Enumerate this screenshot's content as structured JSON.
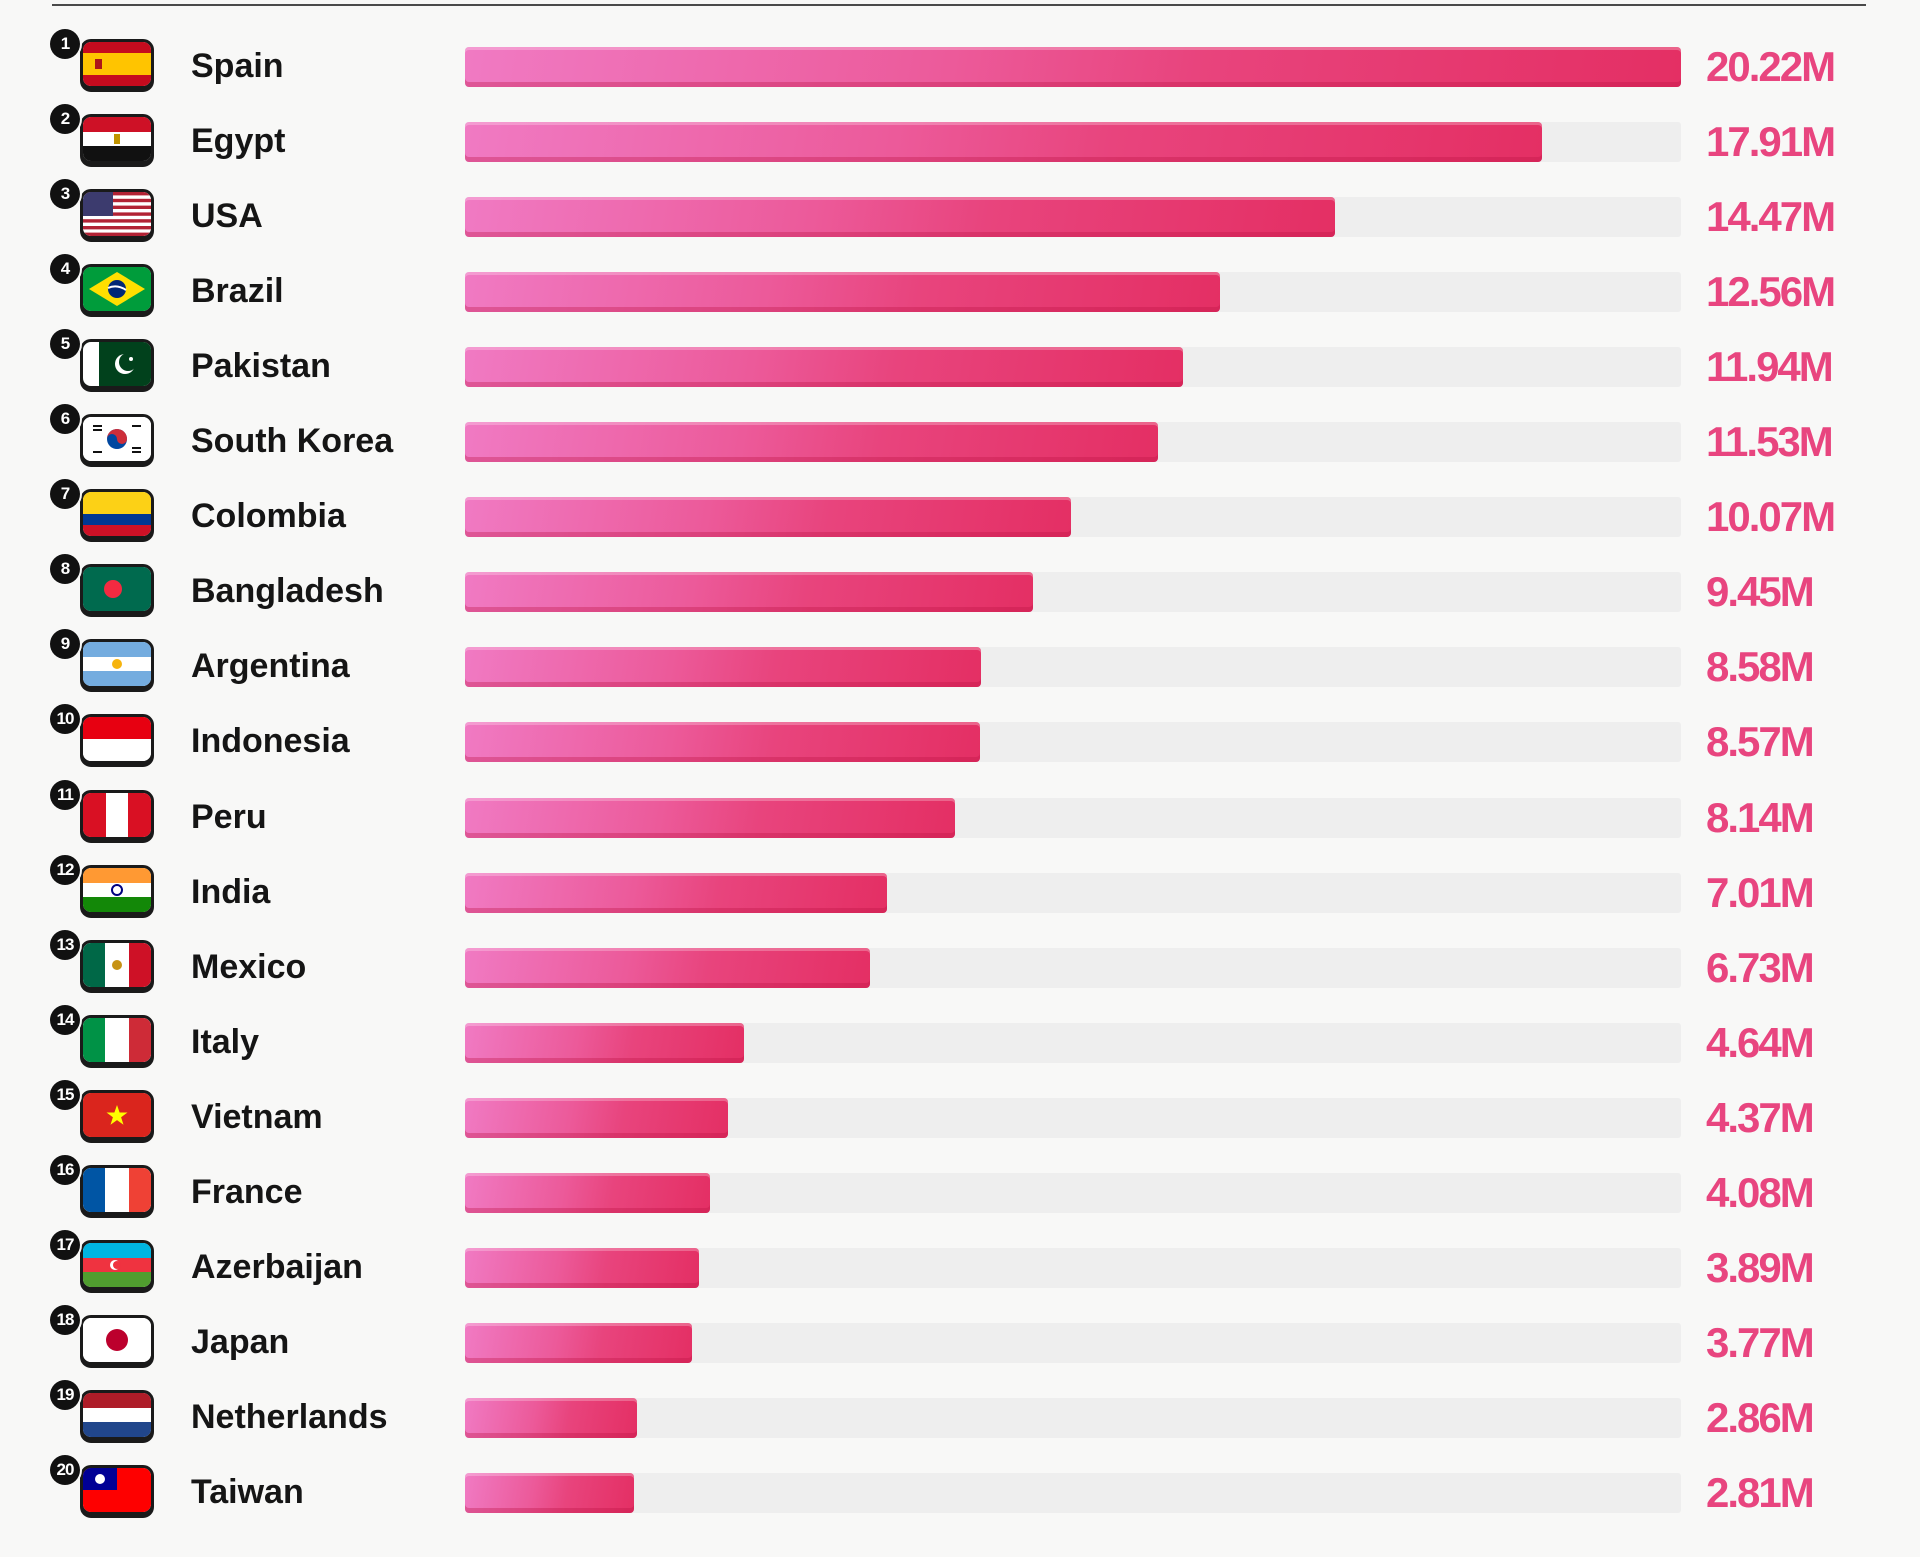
{
  "chart_data": {
    "type": "bar",
    "orientation": "horizontal",
    "title": "",
    "xlabel": "",
    "ylabel": "",
    "xlim": [
      0,
      20.22
    ],
    "unit": "M",
    "categories": [
      "Spain",
      "Egypt",
      "USA",
      "Brazil",
      "Pakistan",
      "South Korea",
      "Colombia",
      "Bangladesh",
      "Argentina",
      "Indonesia",
      "Peru",
      "India",
      "Mexico",
      "Italy",
      "Vietnam",
      "France",
      "Azerbaijan",
      "Japan",
      "Netherlands",
      "Taiwan"
    ],
    "values": [
      20.22,
      17.91,
      14.47,
      12.56,
      11.94,
      11.53,
      10.07,
      9.45,
      8.58,
      8.57,
      8.14,
      7.01,
      6.73,
      4.64,
      4.37,
      4.08,
      3.89,
      3.77,
      2.86,
      2.81
    ],
    "ranks": [
      "1",
      "2",
      "3",
      "4",
      "5",
      "6",
      "7",
      "8",
      "9",
      "10",
      "11",
      "12",
      "13",
      "14",
      "15",
      "16",
      "17",
      "18",
      "19",
      "20"
    ],
    "value_labels": [
      "20.22M",
      "17.91M",
      "14.47M",
      "12.56M",
      "11.94M",
      "11.53M",
      "10.07M",
      "9.45M",
      "8.58M",
      "8.57M",
      "8.14M",
      "7.01M",
      "6.73M",
      "4.64M",
      "4.37M",
      "4.08M",
      "3.89M",
      "3.77M",
      "2.86M",
      "2.81M"
    ],
    "flag_icons": [
      "spain-flag-icon",
      "egypt-flag-icon",
      "usa-flag-icon",
      "brazil-flag-icon",
      "pakistan-flag-icon",
      "south-korea-flag-icon",
      "colombia-flag-icon",
      "bangladesh-flag-icon",
      "argentina-flag-icon",
      "indonesia-flag-icon",
      "peru-flag-icon",
      "india-flag-icon",
      "mexico-flag-icon",
      "italy-flag-icon",
      "vietnam-flag-icon",
      "france-flag-icon",
      "azerbaijan-flag-icon",
      "japan-flag-icon",
      "netherlands-flag-icon",
      "taiwan-flag-icon"
    ],
    "colors": {
      "bar": "#e8457f",
      "value_text": "#e8457f",
      "track": "#eeeeee"
    }
  }
}
